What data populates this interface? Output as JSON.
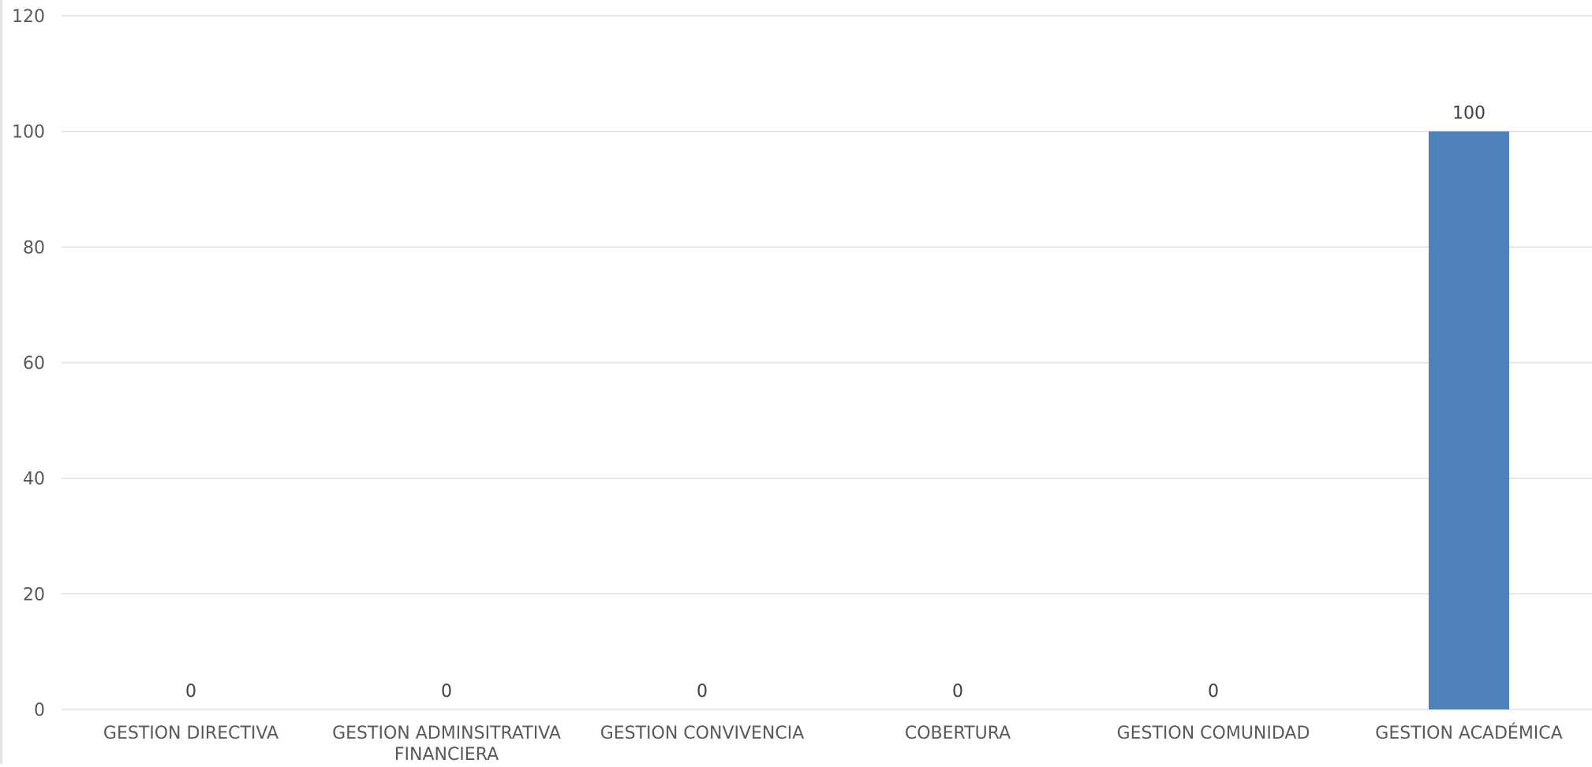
{
  "chart_data": {
    "type": "bar",
    "categories": [
      "GESTION DIRECTIVA",
      "GESTION ADMINSITRATIVA FINANCIERA",
      "GESTION CONVIVENCIA",
      "COBERTURA",
      "GESTION COMUNIDAD",
      "GESTION ACADÉMICA"
    ],
    "category_lines": [
      [
        "GESTION DIRECTIVA"
      ],
      [
        "GESTION ADMINSITRATIVA",
        "FINANCIERA"
      ],
      [
        "GESTION CONVIVENCIA"
      ],
      [
        "COBERTURA"
      ],
      [
        "GESTION COMUNIDAD"
      ],
      [
        "GESTION ACADÉMICA"
      ]
    ],
    "values": [
      0,
      0,
      0,
      0,
      0,
      100
    ],
    "data_labels": [
      "0",
      "0",
      "0",
      "0",
      "0",
      "100"
    ],
    "ylim": [
      0,
      120
    ],
    "yticks": [
      0,
      20,
      40,
      60,
      80,
      100,
      120
    ],
    "grid": true,
    "legend": "none",
    "title": "",
    "xlabel": "",
    "ylabel": "",
    "colors": {
      "bar": "#4f81bd",
      "grid": "#d9d9d9",
      "axis_text": "#595959",
      "label_text": "#404040"
    }
  }
}
